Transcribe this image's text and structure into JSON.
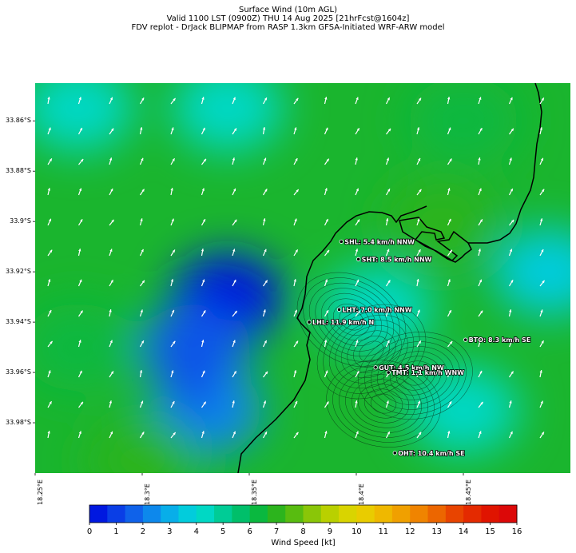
{
  "header": {
    "line1": "Surface Wind (10m AGL)",
    "line2": "Valid 1100 LST (0900Z) THU 14 Aug 2025 [21hrFcst@1604z]",
    "line3": "FDV replot - DrJack BLIPMAP from RASP 1.3km GFSA-Initiated WRF-ARW model"
  },
  "map": {
    "lat_labels": [
      "33.86°S",
      "33.88°S",
      "33.9°S",
      "33.92°S",
      "33.94°S",
      "33.96°S",
      "33.98°S"
    ],
    "lon_labels": [
      "18.25°E",
      "18.3°E",
      "18.35°E",
      "18.4°E",
      "18.45°E"
    ],
    "stations": [
      {
        "code": "SHL",
        "label": "SHL: 5.4 km/h NNW",
        "lon": 18.393,
        "lat": -33.908
      },
      {
        "code": "SHT",
        "label": "SHT: 8.5 km/h NNW",
        "lon": 18.401,
        "lat": -33.915
      },
      {
        "code": "LHT",
        "label": "LHT: 7.0 km/h NNW",
        "lon": 18.392,
        "lat": -33.935
      },
      {
        "code": "LHL",
        "label": "LHL: 11.9 km/h N",
        "lon": 18.378,
        "lat": -33.94
      },
      {
        "code": "BTO",
        "label": "BTO: 8.3 km/h SE",
        "lon": 18.451,
        "lat": -33.947
      },
      {
        "code": "GUT",
        "label": "GUT: 4.5 km/h NW",
        "lon": 18.409,
        "lat": -33.958
      },
      {
        "code": "TMT",
        "label": "TMT: 1.1 km/h WNW",
        "lon": 18.415,
        "lat": -33.96
      },
      {
        "code": "OHT",
        "label": "OHT: 10.4 km/h SE",
        "lon": 18.418,
        "lat": -33.992
      }
    ]
  },
  "colorbar": {
    "title": "Wind Speed [kt]",
    "ticks": [
      "0",
      "1",
      "2",
      "3",
      "4",
      "5",
      "6",
      "7",
      "8",
      "9",
      "10",
      "11",
      "12",
      "13",
      "14",
      "15",
      "16"
    ],
    "colors": [
      "#0018e0",
      "#0a3ee6",
      "#0f62ea",
      "#0d88ec",
      "#08aee9",
      "#02ccdc",
      "#00d8c4",
      "#00cc96",
      "#00bf6a",
      "#0ab83f",
      "#2cb41d",
      "#58bc10",
      "#8ac608",
      "#b9d000",
      "#d9d400",
      "#e9cc00",
      "#efb800",
      "#f0a000",
      "#f08400",
      "#ec6600",
      "#e84400",
      "#e42a00",
      "#e01400",
      "#dc0808"
    ]
  },
  "chart_data": {
    "type": "heatmap",
    "title": "Surface Wind (10m AGL)",
    "colorbar_label": "Wind Speed [kt]",
    "colorbar_range": [
      0,
      16
    ],
    "x_range": [
      18.25,
      18.5
    ],
    "y_range": [
      -34.0,
      -33.845
    ],
    "lon_ticks": [
      18.25,
      18.3,
      18.35,
      18.4,
      18.45
    ],
    "lat_ticks": [
      -33.86,
      -33.88,
      -33.9,
      -33.92,
      -33.94,
      -33.96,
      -33.98
    ],
    "speed_field_points": [
      {
        "lon": 18.27,
        "lat": -33.855,
        "kt": 4
      },
      {
        "lon": 18.34,
        "lat": -33.855,
        "kt": 4.5
      },
      {
        "lon": 18.45,
        "lat": -33.86,
        "kt": 6
      },
      {
        "lon": 18.34,
        "lat": -33.93,
        "kt": 0.5
      },
      {
        "lon": 18.325,
        "lat": -33.95,
        "kt": 1.5
      },
      {
        "lon": 18.33,
        "lat": -33.975,
        "kt": 2
      },
      {
        "lon": 18.41,
        "lat": -33.935,
        "kt": 4
      },
      {
        "lon": 18.45,
        "lat": -33.975,
        "kt": 4
      },
      {
        "lon": 18.49,
        "lat": -33.92,
        "kt": 3.5
      },
      {
        "lon": 18.44,
        "lat": -33.9,
        "kt": 7
      },
      {
        "lon": 18.3,
        "lat": -33.995,
        "kt": 7
      },
      {
        "lon": 18.27,
        "lat": -33.95,
        "kt": 6
      }
    ]
  }
}
